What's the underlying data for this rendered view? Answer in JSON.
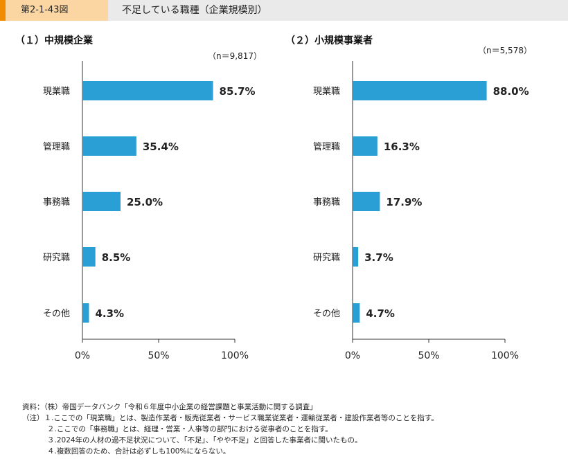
{
  "header": {
    "figure_number": "第2-1-43図",
    "title": "不足している職種（企業規模別）"
  },
  "colors": {
    "bar": "#2a9fd6",
    "accent": "#f08c00",
    "header_bg": "#eaeaea",
    "number_bg": "#fbd6a3"
  },
  "chart_data": [
    {
      "type": "bar",
      "orientation": "horizontal",
      "title": "（１）中規模企業",
      "n_label": "（n＝9,817）",
      "categories": [
        "現業職",
        "管理職",
        "事務職",
        "研究職",
        "その他"
      ],
      "values": [
        85.7,
        35.4,
        25.0,
        8.5,
        4.3
      ],
      "value_labels": [
        "85.7%",
        "35.4%",
        "25.0%",
        "8.5%",
        "4.3%"
      ],
      "xlim": [
        0,
        100
      ],
      "ticks": [
        "0%",
        "50%",
        "100%"
      ],
      "grid": false
    },
    {
      "type": "bar",
      "orientation": "horizontal",
      "title": "（２）小規模事業者",
      "n_label": "（n＝5,578）",
      "categories": [
        "現業職",
        "管理職",
        "事務職",
        "研究職",
        "その他"
      ],
      "values": [
        88.0,
        16.3,
        17.9,
        3.7,
        4.7
      ],
      "value_labels": [
        "88.0%",
        "16.3%",
        "17.9%",
        "3.7%",
        "4.7%"
      ],
      "xlim": [
        0,
        100
      ],
      "ticks": [
        "0%",
        "50%",
        "100%"
      ],
      "grid": false
    }
  ],
  "notes": [
    "資料：（株）帝国データバンク「令和６年度中小企業の経営課題と事業活動に関する調査」",
    "（注）１.ここでの「現業職」とは、製造作業者・販売従業者・サービス職業従業者・運輸従業者・建設作業者等のことを指す。",
    "２.ここでの「事務職」とは、経理・営業・人事等の部門における従事者のことを指す。",
    "３.2024年の人材の過不足状況について、「不足」、「やや不足」と回答した事業者に聞いたもの。",
    "４.複数回答のため、合計は必ずしも100%にならない。"
  ]
}
